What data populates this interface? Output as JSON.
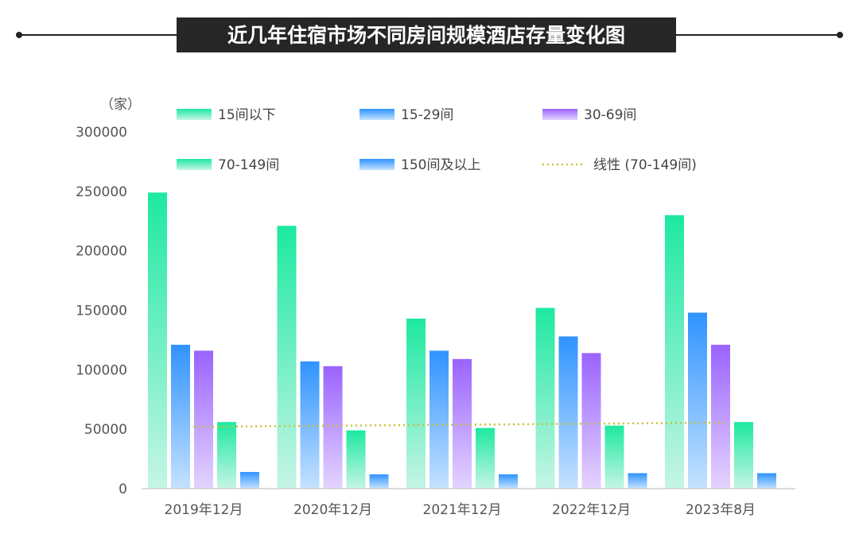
{
  "chart_data": {
    "type": "bar",
    "title": "近几年住宿市场不同房间规模酒店存量变化图",
    "ylabel": "（家）",
    "ylim": [
      0,
      300000
    ],
    "yticks": [
      0,
      50000,
      100000,
      150000,
      200000,
      250000,
      300000
    ],
    "categories": [
      "2019年12月",
      "2020年12月",
      "2021年12月",
      "2022年12月",
      "2023年8月"
    ],
    "series": [
      {
        "name": "15间以下",
        "values": [
          249000,
          221000,
          143000,
          152000,
          230000
        ],
        "color_top": "#1de9a0",
        "color_bottom": "#c6f5e6"
      },
      {
        "name": "15-29间",
        "values": [
          121000,
          107000,
          116000,
          128000,
          148000
        ],
        "color_top": "#2f93ff",
        "color_bottom": "#c5e2ff"
      },
      {
        "name": "30-69间",
        "values": [
          116000,
          103000,
          109000,
          114000,
          121000
        ],
        "color_top": "#9a63ff",
        "color_bottom": "#e4d4ff"
      },
      {
        "name": "70-149间",
        "values": [
          56000,
          49000,
          51000,
          53000,
          56000
        ],
        "color_top": "#1de9a0",
        "color_bottom": "#c6f5e6"
      },
      {
        "name": "150间及以上",
        "values": [
          14000,
          12000,
          12000,
          13000,
          13000
        ],
        "color_top": "#2f93ff",
        "color_bottom": "#c5e2ff"
      }
    ],
    "trendline": {
      "name": "线性 (70-149间)",
      "start": 52000,
      "end": 55500,
      "color": "#c9c23a"
    },
    "grid": false,
    "legend_position": "top"
  }
}
